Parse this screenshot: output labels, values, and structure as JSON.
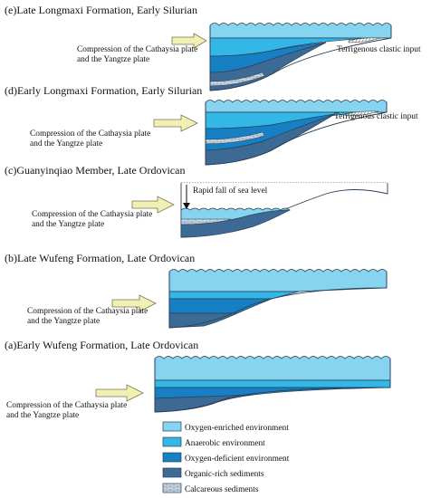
{
  "colors": {
    "oxygen_enriched": "#86d4ef",
    "anaerobic": "#33b7e6",
    "oxygen_deficient": "#1780c4",
    "organic_rich": "#3d6a94",
    "calcareous": "#c9d6e3",
    "arrow": "#f2efb5",
    "outline": "#2a3f55"
  },
  "panels": [
    {
      "id": "e",
      "title": "(e)Late Longmaxi Formation, Early Silurian",
      "force_line1": "Compression of the Cathaysia plate",
      "force_line2": "and the Yangtze plate",
      "side_label": "Terrigenous clastic input"
    },
    {
      "id": "d",
      "title": "(d)Early Longmaxi Formation, Early Silurian",
      "force_line1": "Compression of the Cathaysia plate",
      "force_line2": "and the Yangtze plate",
      "side_label": "Terrigenous clastic input"
    },
    {
      "id": "c",
      "title": "(c)Guanyinqiao Member, Late Ordovican",
      "force_line1": "Compression of the Cathaysia plate",
      "force_line2": "and the Yangtze plate",
      "side_label": "Rapid fall of sea level"
    },
    {
      "id": "b",
      "title": "(b)Late Wufeng Formation,  Late Ordovican",
      "force_line1": "Compression of the Cathaysia plate",
      "force_line2": "and the Yangtze plate"
    },
    {
      "id": "a",
      "title": "(a)Early Wufeng Formation, Late Ordovican",
      "force_line1": "Compression of the Cathaysia plate",
      "force_line2": "and the Yangtze plate"
    }
  ],
  "legend": [
    {
      "key": "oxygen_enriched",
      "label": "Oxygen-enriched environment"
    },
    {
      "key": "anaerobic",
      "label": "Anaerobic environment"
    },
    {
      "key": "oxygen_deficient",
      "label": "Oxygen-deficient environment"
    },
    {
      "key": "organic_rich",
      "label": "Organic-rich sediments"
    },
    {
      "key": "calcareous",
      "label": "Calcareous sediments"
    }
  ]
}
